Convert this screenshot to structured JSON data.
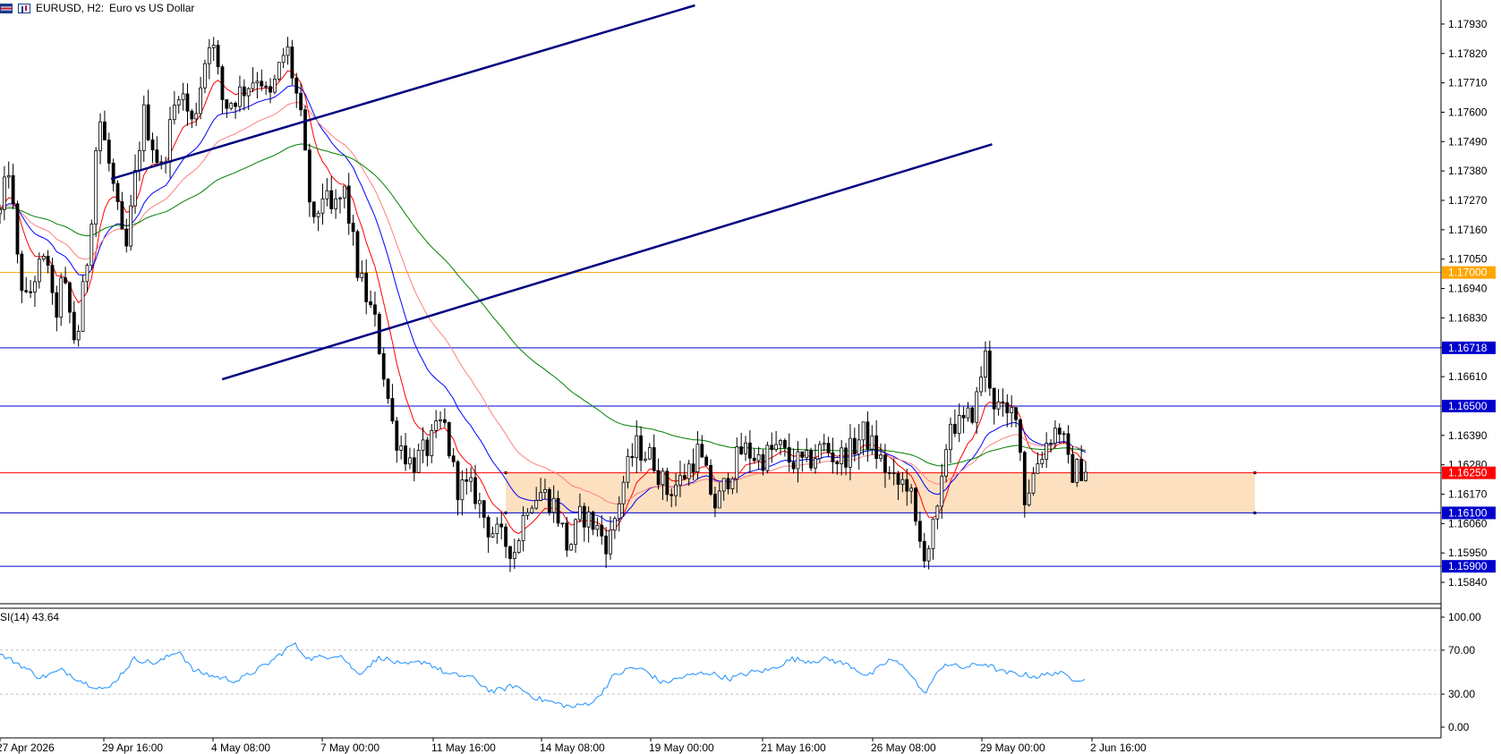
{
  "header": {
    "symbol": "EURUSD, H2:",
    "description": "Euro vs US Dollar"
  },
  "rsi_label": "SI(14) 43.64",
  "colors": {
    "bull_body": "#ffffff",
    "bear_body": "#000000",
    "ema_fast": "#ff0000",
    "ema_mid": "#0000ff",
    "ema_slow": "#ff8080",
    "ema_long": "#008000",
    "rsi": "#1e90ff",
    "zone": "#fde0c0",
    "hline_blue": "#0000cd",
    "hline_orange": "#ffa500",
    "hline_red": "#ff0000",
    "channel": "#000080"
  },
  "chart_data": [
    {
      "type": "candlestick",
      "title": "EURUSD, H2: Euro vs US Dollar",
      "ylim": [
        1.1578,
        1.18
      ],
      "y_ticks": [
        "1.17930",
        "1.17820",
        "1.17710",
        "1.17600",
        "1.17490",
        "1.17380",
        "1.17270",
        "1.17160",
        "1.17050",
        "1.16940",
        "1.16830",
        "1.16720",
        "1.16610",
        "1.16390",
        "1.16280",
        "1.16170",
        "1.16060",
        "1.15950",
        "1.15840"
      ],
      "x_labels": [
        "27 Apr 2026",
        "29 Apr 16:00",
        "4 May 08:00",
        "7 May 00:00",
        "11 May 16:00",
        "14 May 08:00",
        "19 May 00:00",
        "21 May 16:00",
        "26 May 08:00",
        "29 May 00:00",
        "2 Jun 16:00"
      ],
      "price_levels": [
        {
          "label": "1.17000",
          "value": 1.17,
          "kind": "orange"
        },
        {
          "label": "1.16718",
          "value": 1.16718,
          "kind": "blue"
        },
        {
          "label": "1.16500",
          "value": 1.165,
          "kind": "blue"
        },
        {
          "label": "1.16250",
          "value": 1.1625,
          "kind": "red"
        },
        {
          "label": "1.16100",
          "value": 1.161,
          "kind": "blue"
        },
        {
          "label": "1.15900",
          "value": 1.159,
          "kind": "blue"
        }
      ],
      "zone": {
        "low": 1.161,
        "high": 1.1625
      },
      "channel": [
        {
          "from": [
            0.074,
            1.1735
          ],
          "to": [
            0.463,
            1.18
          ]
        },
        {
          "from": [
            0.148,
            1.166
          ],
          "to": [
            0.661,
            1.1748
          ]
        }
      ],
      "n_candles": 250,
      "price_anchors": [
        [
          0,
          1.1722
        ],
        [
          10,
          1.174
        ],
        [
          20,
          1.1702
        ],
        [
          30,
          1.1688
        ],
        [
          40,
          1.17
        ],
        [
          55,
          1.1705
        ],
        [
          60,
          1.168
        ],
        [
          70,
          1.1698
        ],
        [
          85,
          1.1672
        ],
        [
          100,
          1.1712
        ],
        [
          110,
          1.176
        ],
        [
          125,
          1.1735
        ],
        [
          140,
          1.1705
        ],
        [
          160,
          1.176
        ],
        [
          180,
          1.1738
        ],
        [
          200,
          1.177
        ],
        [
          215,
          1.1755
        ],
        [
          235,
          1.179
        ],
        [
          250,
          1.1762
        ],
        [
          270,
          1.1768
        ],
        [
          290,
          1.1775
        ],
        [
          300,
          1.1763
        ],
        [
          320,
          1.1785
        ],
        [
          335,
          1.176
        ],
        [
          350,
          1.1715
        ],
        [
          360,
          1.173
        ],
        [
          370,
          1.1722
        ],
        [
          385,
          1.173
        ],
        [
          400,
          1.17
        ],
        [
          420,
          1.168
        ],
        [
          440,
          1.164
        ],
        [
          460,
          1.1628
        ],
        [
          480,
          1.1635
        ],
        [
          495,
          1.1645
        ],
        [
          510,
          1.162
        ],
        [
          530,
          1.1618
        ],
        [
          545,
          1.1605
        ],
        [
          560,
          1.16
        ],
        [
          575,
          1.1596
        ],
        [
          590,
          1.1615
        ],
        [
          605,
          1.1618
        ],
        [
          620,
          1.1613
        ],
        [
          635,
          1.1596
        ],
        [
          650,
          1.161
        ],
        [
          665,
          1.1605
        ],
        [
          680,
          1.1598
        ],
        [
          695,
          1.162
        ],
        [
          710,
          1.1635
        ],
        [
          730,
          1.163
        ],
        [
          745,
          1.1618
        ],
        [
          760,
          1.1622
        ],
        [
          780,
          1.1633
        ],
        [
          800,
          1.1612
        ],
        [
          815,
          1.1625
        ],
        [
          830,
          1.1634
        ],
        [
          850,
          1.163
        ],
        [
          870,
          1.1635
        ],
        [
          880,
          1.163
        ],
        [
          900,
          1.1628
        ],
        [
          920,
          1.1635
        ],
        [
          935,
          1.163
        ],
        [
          950,
          1.1633
        ],
        [
          965,
          1.164
        ],
        [
          980,
          1.1632
        ],
        [
          1000,
          1.162
        ],
        [
          1015,
          1.1622
        ],
        [
          1025,
          1.16
        ],
        [
          1035,
          1.1595
        ],
        [
          1050,
          1.1612
        ],
        [
          1060,
          1.1645
        ],
        [
          1075,
          1.1642
        ],
        [
          1090,
          1.165
        ],
        [
          1100,
          1.167
        ],
        [
          1110,
          1.1652
        ],
        [
          1125,
          1.1645
        ],
        [
          1135,
          1.165
        ],
        [
          1145,
          1.1615
        ],
        [
          1160,
          1.163
        ],
        [
          1175,
          1.164
        ],
        [
          1185,
          1.1642
        ],
        [
          1195,
          1.1625
        ],
        [
          1213,
          1.1627
        ]
      ],
      "rsi": {
        "label": "SI(14) 43.64",
        "ylim": [
          0,
          100
        ],
        "y_ticks": [
          "100.00",
          "70.00",
          "30.00",
          "0.00"
        ],
        "levels": [
          70,
          30
        ],
        "anchors": [
          [
            0,
            66
          ],
          [
            20,
            58
          ],
          [
            45,
            45
          ],
          [
            70,
            52
          ],
          [
            95,
            40
          ],
          [
            120,
            34
          ],
          [
            150,
            62
          ],
          [
            175,
            58
          ],
          [
            200,
            70
          ],
          [
            215,
            52
          ],
          [
            240,
            46
          ],
          [
            265,
            42
          ],
          [
            300,
            58
          ],
          [
            328,
            76
          ],
          [
            345,
            62
          ],
          [
            380,
            66
          ],
          [
            400,
            48
          ],
          [
            425,
            64
          ],
          [
            450,
            56
          ],
          [
            475,
            60
          ],
          [
            500,
            48
          ],
          [
            525,
            46
          ],
          [
            550,
            32
          ],
          [
            575,
            38
          ],
          [
            600,
            26
          ],
          [
            620,
            22
          ],
          [
            640,
            18
          ],
          [
            665,
            24
          ],
          [
            685,
            46
          ],
          [
            705,
            54
          ],
          [
            720,
            52
          ],
          [
            740,
            40
          ],
          [
            765,
            46
          ],
          [
            790,
            50
          ],
          [
            815,
            44
          ],
          [
            840,
            50
          ],
          [
            860,
            52
          ],
          [
            885,
            62
          ],
          [
            905,
            60
          ],
          [
            925,
            62
          ],
          [
            950,
            56
          ],
          [
            970,
            46
          ],
          [
            995,
            62
          ],
          [
            1015,
            52
          ],
          [
            1032,
            30
          ],
          [
            1055,
            58
          ],
          [
            1075,
            54
          ],
          [
            1100,
            58
          ],
          [
            1120,
            50
          ],
          [
            1140,
            48
          ],
          [
            1160,
            46
          ],
          [
            1180,
            50
          ],
          [
            1200,
            44
          ],
          [
            1213,
            44
          ]
        ]
      }
    }
  ]
}
